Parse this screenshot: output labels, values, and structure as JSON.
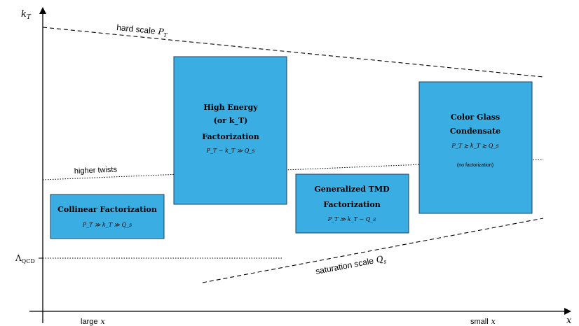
{
  "axes": {
    "y_label": "k",
    "y_label_sub": "T",
    "x_label": "x",
    "lambda_label": "Λ",
    "lambda_sub": "QCD",
    "large_x_prefix": "large",
    "large_x_var": "x",
    "small_x_prefix": "small",
    "small_x_var": "x"
  },
  "lines": {
    "hard_scale_text": "hard scale",
    "hard_scale_var": "P",
    "hard_scale_sub": "T",
    "higher_twists": "higher twists",
    "saturation_text": "saturation scale",
    "saturation_var": "Q",
    "saturation_sub": "s"
  },
  "boxes": {
    "collinear": {
      "title": "Collinear Factorization",
      "formula": "P_T ≫ k_T ≫ Q_s"
    },
    "high_energy": {
      "line1": "High Energy",
      "line2": "(or k_T)",
      "line3": "Factorization",
      "formula": "P_T ∼ k_T ≫ Q_s"
    },
    "gtmd": {
      "line1": "Generalized TMD",
      "line2": "Factorization",
      "formula": "P_T ≫ k_T ∼ Q_s"
    },
    "cgc": {
      "line1": "Color Glass",
      "line2": "Condensate",
      "formula": "P_T ≳ k_T ≳ Q_s",
      "note": "(no factorization)"
    }
  },
  "colors": {
    "box_fill": "#3aaee3",
    "box_stroke": "#1d3f5e",
    "line": "#000000"
  }
}
